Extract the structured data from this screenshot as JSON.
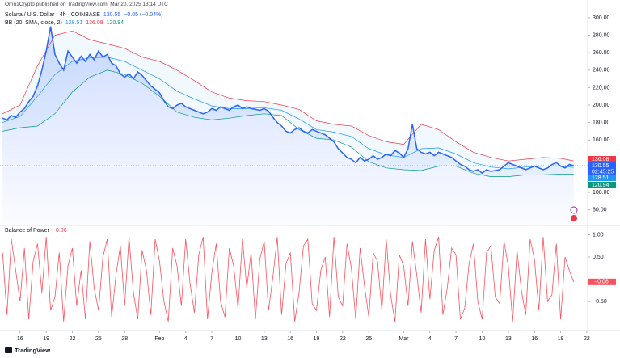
{
  "header": {
    "author_line": "Omn1Crypto published on TradingView.com, Mar 20, 2025 13:14 UTC",
    "brand": "TradingView"
  },
  "chart_data": [
    {
      "type": "line",
      "title": "Solana / U.S. Dollar · 4h · COINBASE",
      "change": "−0.05 (−0.04%)",
      "indicator": "BB (20, SMA, close, 2)",
      "countdown": "02:45:25",
      "xlim": [
        13.7,
        81.1
      ],
      "ylim": [
        63,
        320.4
      ],
      "yticks": [
        {
          "value": 80,
          "label": "80.00"
        },
        {
          "value": 100,
          "label": "100.00"
        },
        {
          "value": 160,
          "label": "160.00"
        },
        {
          "value": 180,
          "label": "180.00"
        },
        {
          "value": 200,
          "label": "200.00"
        },
        {
          "value": 220,
          "label": "220.00"
        },
        {
          "value": 240,
          "label": "240.00"
        },
        {
          "value": 260,
          "label": "260.00"
        },
        {
          "value": 280,
          "label": "280.00"
        },
        {
          "value": 300,
          "label": "300.00"
        }
      ],
      "series": [
        {
          "color": "#2962ff",
          "x": [
            14,
            14.5,
            15,
            15.5,
            16,
            16.5,
            17,
            17.5,
            18,
            18.5,
            19,
            19.5,
            20,
            20.5,
            21,
            21.5,
            22,
            22.5,
            23,
            23.5,
            24,
            24.5,
            25,
            25.5,
            26,
            26.5,
            27,
            27.5,
            28,
            28.5,
            29,
            29.5,
            30,
            30.5,
            31,
            31.5,
            32,
            32.5,
            33,
            33.5,
            34,
            34.5,
            35,
            35.5,
            36,
            36.5,
            37,
            37.5,
            38,
            38.5,
            39,
            39.5,
            40,
            40.5,
            41,
            41.5,
            42,
            42.5,
            43,
            43.5,
            44,
            44.5,
            45,
            45.5,
            46,
            46.5,
            47,
            47.5,
            48,
            48.5,
            49,
            49.5,
            50,
            50.5,
            51,
            51.5,
            52,
            52.5,
            53,
            53.5,
            54,
            54.5,
            55,
            55.5,
            56,
            56.5,
            57,
            57.5,
            58,
            58.5,
            59,
            59.5,
            60,
            60.5,
            61,
            61.5,
            62,
            62.5,
            63,
            63.5,
            64,
            64.5,
            65,
            65.5,
            66,
            66.5,
            67,
            67.5,
            68,
            68.5,
            69,
            69.5,
            70,
            70.5,
            71,
            71.5,
            72,
            72.5,
            73,
            73.5,
            74,
            74.5,
            75,
            75.5,
            76,
            76.5,
            77,
            77.5,
            78,
            78.5,
            79,
            79.5
          ],
          "values": [
            185,
            183,
            188,
            186,
            192,
            196,
            204,
            210,
            222,
            240,
            262,
            290,
            258,
            248,
            240,
            262,
            255,
            248,
            256,
            250,
            258,
            252,
            262,
            255,
            258,
            248,
            245,
            236,
            232,
            236,
            230,
            238,
            234,
            228,
            222,
            218,
            214,
            205,
            198,
            196,
            200,
            202,
            198,
            196,
            194,
            192,
            190,
            192,
            196,
            194,
            198,
            196,
            194,
            198,
            200,
            196,
            198,
            196,
            195,
            194,
            196,
            193,
            186,
            180,
            176,
            170,
            168,
            172,
            174,
            170,
            168,
            172,
            170,
            168,
            166,
            162,
            158,
            150,
            145,
            140,
            138,
            134,
            140,
            136,
            138,
            142,
            138,
            140,
            144,
            142,
            148,
            145,
            140,
            150,
            178,
            150,
            146,
            144,
            146,
            142,
            146,
            144,
            142,
            140,
            136,
            132,
            130,
            126,
            124,
            126,
            122,
            126,
            124,
            125,
            126,
            130,
            134,
            132,
            130,
            128,
            126,
            128,
            130,
            128,
            126,
            128,
            132,
            134,
            130,
            128,
            132,
            130.55
          ]
        },
        {
          "color": "#2196f3",
          "x": [
            14,
            16,
            18,
            20,
            22,
            24,
            26,
            28,
            30,
            32,
            34,
            36,
            38,
            40,
            42,
            44,
            46,
            48,
            50,
            52,
            54,
            56,
            58,
            60,
            62,
            64,
            66,
            68,
            70,
            72,
            74,
            76,
            78,
            79.5
          ],
          "values": [
            180,
            187,
            210,
            235,
            250,
            254,
            255,
            250,
            240,
            230,
            216,
            207,
            199,
            196,
            196,
            197,
            194,
            184,
            172,
            169,
            164,
            150,
            143,
            140,
            150,
            151,
            144,
            134,
            129,
            127,
            129,
            130,
            130,
            128.51
          ]
        },
        {
          "color": "#f23645",
          "x": [
            14,
            16,
            18,
            20,
            22,
            24,
            26,
            28,
            30,
            32,
            34,
            36,
            38,
            40,
            42,
            44,
            46,
            48,
            50,
            52,
            54,
            56,
            58,
            60,
            62,
            64,
            66,
            68,
            70,
            72,
            74,
            76,
            78,
            79.5
          ],
          "values": [
            190,
            200,
            245,
            280,
            285,
            275,
            270,
            265,
            255,
            250,
            240,
            228,
            215,
            208,
            205,
            204,
            200,
            195,
            182,
            178,
            176,
            165,
            158,
            155,
            178,
            172,
            158,
            146,
            140,
            136,
            138,
            140,
            139,
            136.08
          ]
        },
        {
          "color": "#089981",
          "x": [
            14,
            16,
            18,
            20,
            22,
            24,
            26,
            28,
            30,
            32,
            34,
            36,
            38,
            40,
            42,
            44,
            46,
            48,
            50,
            52,
            54,
            56,
            58,
            60,
            62,
            64,
            66,
            68,
            70,
            72,
            74,
            76,
            78,
            79.5
          ],
          "values": [
            170,
            174,
            176,
            190,
            215,
            232,
            240,
            235,
            225,
            210,
            192,
            186,
            183,
            185,
            188,
            190,
            188,
            172,
            162,
            160,
            152,
            135,
            128,
            126,
            125,
            130,
            130,
            122,
            118,
            118,
            120,
            120,
            121,
            120.94
          ]
        }
      ]
    },
    {
      "type": "line",
      "title": "Balance of Power",
      "current": {
        "value": -0.06,
        "label": "−0.06"
      },
      "xlim": [
        13.7,
        81.1
      ],
      "ylim": [
        -1.08,
        1.19
      ],
      "yticks": [
        {
          "value": 1,
          "label": "1.00"
        },
        {
          "value": 0.5,
          "label": "0.50"
        },
        {
          "value": -0.5,
          "label": "−0.50"
        }
      ],
      "xticks": [
        16,
        19,
        22,
        25,
        28,
        {
          "value": 32,
          "label": "Feb"
        },
        {
          "value": 35,
          "label": "4"
        },
        {
          "value": 38,
          "label": "7"
        },
        {
          "value": 41,
          "label": "10"
        },
        {
          "value": 44,
          "label": "13"
        },
        {
          "value": 47,
          "label": "16"
        },
        {
          "value": 50,
          "label": "19"
        },
        {
          "value": 53,
          "label": "22"
        },
        {
          "value": 56,
          "label": "25"
        },
        {
          "value": 60,
          "label": "Mar"
        },
        {
          "value": 63,
          "label": "4"
        },
        {
          "value": 66,
          "label": "7"
        },
        {
          "value": 69,
          "label": "10"
        },
        {
          "value": 72,
          "label": "13"
        },
        {
          "value": 75,
          "label": "16"
        },
        {
          "value": 78,
          "label": "19"
        },
        {
          "value": 81,
          "label": "22"
        }
      ],
      "series": [
        {
          "color": "#f7525f",
          "x": [
            14,
            14.5,
            15,
            15.5,
            16,
            16.5,
            17,
            17.5,
            18,
            18.5,
            19,
            19.5,
            20,
            20.5,
            21,
            21.5,
            22,
            22.5,
            23,
            23.5,
            24,
            24.5,
            25,
            25.5,
            26,
            26.5,
            27,
            27.5,
            28,
            28.5,
            29,
            29.5,
            30,
            30.5,
            31,
            31.5,
            32,
            32.5,
            33,
            33.5,
            34,
            34.5,
            35,
            35.5,
            36,
            36.5,
            37,
            37.5,
            38,
            38.5,
            39,
            39.5,
            40,
            40.5,
            41,
            41.5,
            42,
            42.5,
            43,
            43.5,
            44,
            44.5,
            45,
            45.5,
            46,
            46.5,
            47,
            47.5,
            48,
            48.5,
            49,
            49.5,
            50,
            50.5,
            51,
            51.5,
            52,
            52.5,
            53,
            53.5,
            54,
            54.5,
            55,
            55.5,
            56,
            56.5,
            57,
            57.5,
            58,
            58.5,
            59,
            59.5,
            60,
            60.5,
            61,
            61.5,
            62,
            62.5,
            63,
            63.5,
            64,
            64.5,
            65,
            65.5,
            66,
            66.5,
            67,
            67.5,
            68,
            68.5,
            69,
            69.5,
            70,
            70.5,
            71,
            71.5,
            72,
            72.5,
            73,
            73.5,
            74,
            74.5,
            75,
            75.5,
            76,
            76.5,
            77,
            77.5,
            78,
            78.5,
            79,
            79.5
          ],
          "values": [
            0.6,
            -0.8,
            0.9,
            0.2,
            -0.5,
            0.7,
            -0.9,
            0.4,
            0.8,
            -0.3,
            0.95,
            -0.7,
            -0.4,
            0.6,
            -0.95,
            0.3,
            0.7,
            -0.6,
            0.2,
            -0.9,
            0.85,
            -0.2,
            -0.7,
            0.5,
            0.9,
            -0.85,
            0.1,
            0.75,
            -0.6,
            0.95,
            -0.3,
            -0.9,
            0.65,
            0.2,
            -0.8,
            0.9,
            0.4,
            -0.5,
            -0.95,
            0.7,
            0.3,
            -0.6,
            0.9,
            -0.1,
            -0.75,
            0.55,
            0.95,
            -0.9,
            0.15,
            0.8,
            -0.5,
            -0.85,
            0.7,
            0.3,
            -0.65,
            0.9,
            -0.2,
            0.6,
            -0.9,
            0.45,
            0.85,
            -0.7,
            0.05,
            0.95,
            -0.8,
            0.35,
            0.6,
            -0.95,
            -0.3,
            0.75,
            0.9,
            -0.55,
            -0.7,
            0.2,
            0.5,
            -0.85,
            0.95,
            -0.4,
            -0.6,
            0.8,
            0.25,
            -0.9,
            0.7,
            -0.15,
            -0.85,
            0.6,
            0.4,
            -0.7,
            0.9,
            -0.35,
            -0.95,
            0.55,
            0.3,
            -0.6,
            0.85,
            0.1,
            -0.75,
            0.9,
            -0.45,
            0.65,
            0.95,
            -0.8,
            -0.2,
            0.7,
            0.55,
            -0.9,
            -0.65,
            0.35,
            0.8,
            -0.5,
            -0.9,
            0.6,
            0.75,
            -0.4,
            -0.55,
            0.85,
            0.3,
            -0.95,
            0.65,
            -0.25,
            -0.8,
            0.9,
            0.45,
            -0.7,
            0.95,
            -0.5,
            -0.35,
            0.8,
            -0.9,
            0.5,
            0.2,
            -0.06
          ]
        }
      ]
    }
  ]
}
